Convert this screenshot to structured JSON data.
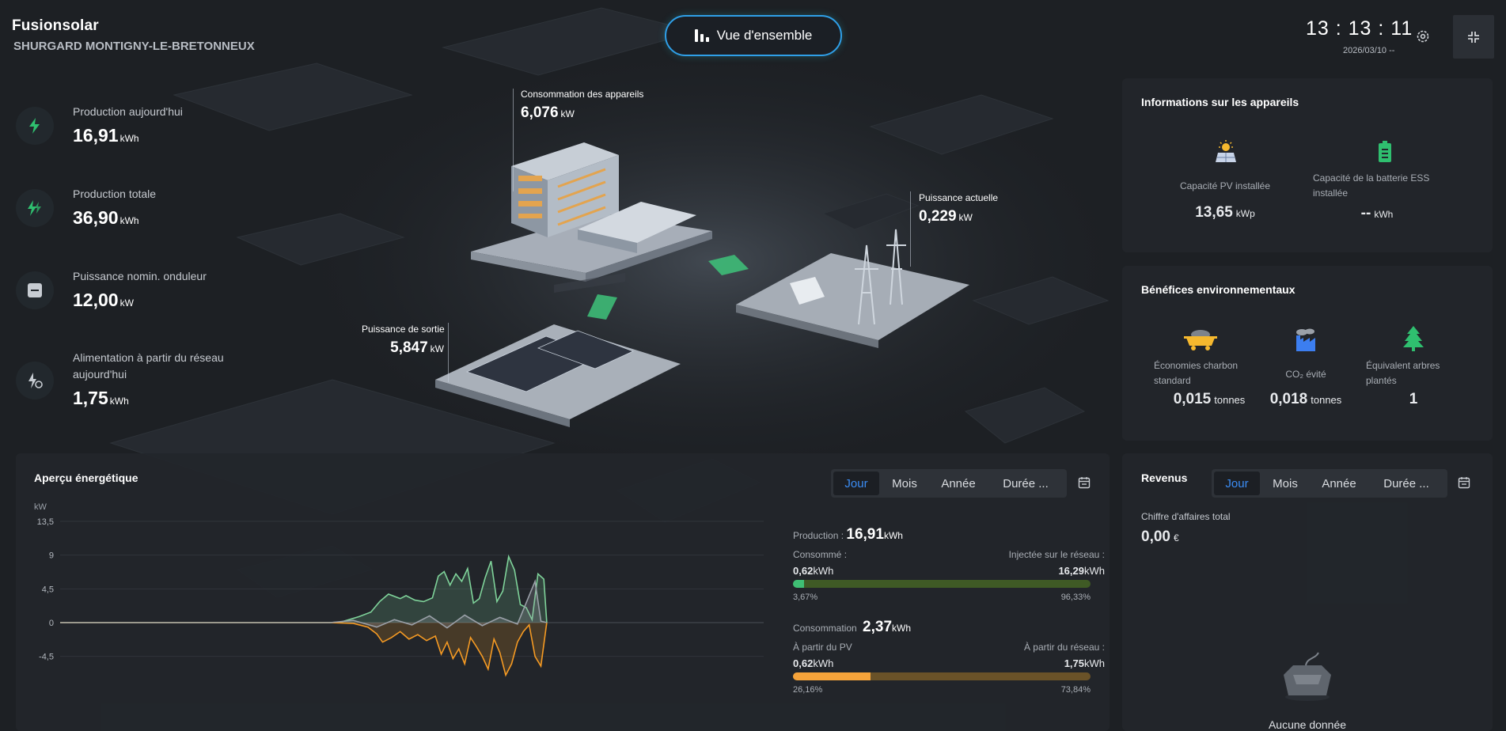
{
  "header": {
    "logo": "Fusionsolar",
    "plant_name": "SHURGARD MONTIGNY-LE-BRETONNEUX",
    "overview_label": "Vue d'ensemble",
    "clock": "13 : 13 : 11",
    "date": "2026/03/10 --"
  },
  "stats": [
    {
      "label": "Production aujourd'hui",
      "value": "16,91",
      "unit": "kWh",
      "icon": "bolt-icon"
    },
    {
      "label": "Production totale",
      "value": "36,90",
      "unit": "kWh",
      "icon": "double-bolt-icon"
    },
    {
      "label": "Puissance nomin. onduleur",
      "value": "12,00",
      "unit": "kW",
      "icon": "inverter-icon"
    },
    {
      "label_line1": "Alimentation à partir du réseau",
      "label_line2": "aujourd'hui",
      "value": "1,75",
      "unit": "kWh",
      "icon": "grid-supply-icon"
    }
  ],
  "scene": {
    "consumption_label": "Consommation des appareils",
    "consumption_value": "6,076",
    "consumption_unit": "kW",
    "current_label": "Puissance actuelle",
    "current_value": "0,229",
    "current_unit": "kW",
    "output_label": "Puissance de sortie",
    "output_value": "5,847",
    "output_unit": "kW"
  },
  "devices": {
    "title": "Informations sur les appareils",
    "pv_label": "Capacité PV installée",
    "pv_value": "13,65",
    "pv_unit": "kWp",
    "ess_label_line1": "Capacité de la batterie ESS",
    "ess_label_line2": "installée",
    "ess_value": "--",
    "ess_unit": "kWh"
  },
  "environment": {
    "title": "Bénéfices environnementaux",
    "coal_label_line1": "Économies charbon",
    "coal_label_line2": "standard",
    "coal_value": "0,015",
    "coal_unit": "tonnes",
    "co2_label": "CO₂ évité",
    "co2_value": "0,018",
    "co2_unit": "tonnes",
    "trees_label_line1": "Équivalent arbres",
    "trees_label_line2": "plantés",
    "trees_value": "1"
  },
  "energy": {
    "title": "Aperçu énergétique",
    "tabs": [
      "Jour",
      "Mois",
      "Année",
      "Durée ..."
    ],
    "active_tab": "Jour",
    "production_label": "Production :",
    "production_value": "16,91",
    "production_unit": "kWh",
    "consumed_label": "Consommé :",
    "consumed_value": "0,62",
    "consumed_unit": "kWh",
    "injected_label": "Injectée sur le réseau :",
    "injected_value": "16,29",
    "injected_unit": "kWh",
    "consumed_pct": "3,67%",
    "injected_pct": "96,33%",
    "consumed_fraction": 0.0367,
    "consumption_label": "Consommation",
    "consumption_value": "2,37",
    "consumption_unit": "kWh",
    "from_pv_label": "À partir du PV",
    "from_pv_value": "0,62",
    "from_pv_unit": "kWh",
    "from_grid_label": "À partir du réseau :",
    "from_grid_value": "1,75",
    "from_grid_unit": "kWh",
    "from_pv_pct": "26,16%",
    "from_grid_pct": "73,84%",
    "from_pv_fraction": 0.2616,
    "colors": {
      "production": "#7fd39a",
      "consumption": "#f59a23",
      "grid": "#9aa0a8"
    }
  },
  "chart_data": {
    "type": "area",
    "ylabel": "kW",
    "y_ticks": [
      "13,5",
      "9",
      "4,5",
      "0",
      "-4,5"
    ],
    "ylim": [
      -8,
      13.5
    ],
    "xlim": [
      0,
      24
    ],
    "grid": true,
    "series": [
      {
        "values": [
          [
            0,
            0
          ],
          [
            9.2,
            0
          ],
          [
            9.6,
            0.1
          ],
          [
            10.2,
            0.8
          ],
          [
            10.6,
            1.4
          ],
          [
            10.9,
            2.8
          ],
          [
            11.2,
            3.8
          ],
          [
            11.6,
            3.2
          ],
          [
            11.8,
            3.6
          ],
          [
            12.1,
            3.0
          ],
          [
            12.4,
            2.8
          ],
          [
            12.7,
            3.3
          ],
          [
            12.9,
            6.2
          ],
          [
            13.1,
            6.8
          ],
          [
            13.3,
            5.0
          ],
          [
            13.5,
            6.5
          ],
          [
            13.7,
            5.5
          ],
          [
            13.9,
            7.2
          ],
          [
            14.1,
            2.6
          ],
          [
            14.3,
            3.2
          ],
          [
            14.5,
            6.0
          ],
          [
            14.7,
            8.2
          ],
          [
            14.9,
            2.8
          ],
          [
            15.1,
            4.2
          ],
          [
            15.3,
            8.8
          ],
          [
            15.5,
            7.0
          ],
          [
            15.7,
            2.4
          ],
          [
            15.9,
            2.0
          ],
          [
            16.1,
            0.4
          ],
          [
            16.3,
            6.5
          ],
          [
            16.5,
            5.8
          ],
          [
            16.6,
            0
          ]
        ]
      },
      {
        "values": [
          [
            0,
            0
          ],
          [
            9.2,
            0
          ],
          [
            10,
            -0.1
          ],
          [
            10.5,
            -0.6
          ],
          [
            10.8,
            -1.5
          ],
          [
            11.0,
            -2.6
          ],
          [
            11.3,
            -2.0
          ],
          [
            11.6,
            -1.2
          ],
          [
            11.9,
            -2.2
          ],
          [
            12.2,
            -1.6
          ],
          [
            12.5,
            -2.4
          ],
          [
            12.8,
            -1.8
          ],
          [
            13.0,
            -4.2
          ],
          [
            13.2,
            -2.6
          ],
          [
            13.4,
            -4.8
          ],
          [
            13.6,
            -3.5
          ],
          [
            13.8,
            -5.5
          ],
          [
            14.0,
            -2.0
          ],
          [
            14.2,
            -3.2
          ],
          [
            14.4,
            -4.5
          ],
          [
            14.6,
            -6.2
          ],
          [
            14.8,
            -2.2
          ],
          [
            15.0,
            -4.0
          ],
          [
            15.2,
            -7.0
          ],
          [
            15.4,
            -5.5
          ],
          [
            15.6,
            -2.6
          ],
          [
            15.8,
            -1.2
          ],
          [
            16.0,
            -0.3
          ],
          [
            16.2,
            -4.5
          ],
          [
            16.4,
            -5.8
          ],
          [
            16.6,
            0
          ]
        ]
      },
      {
        "values": [
          [
            0,
            0
          ],
          [
            9.2,
            0
          ],
          [
            10,
            0.3
          ],
          [
            10.8,
            -0.6
          ],
          [
            11.4,
            0.4
          ],
          [
            12.0,
            -0.3
          ],
          [
            12.6,
            0.9
          ],
          [
            13.2,
            -0.7
          ],
          [
            13.8,
            1.0
          ],
          [
            14.4,
            -0.4
          ],
          [
            15.0,
            0.7
          ],
          [
            15.6,
            -0.2
          ],
          [
            16.2,
            5.5
          ],
          [
            16.4,
            0.2
          ],
          [
            16.6,
            0
          ]
        ]
      }
    ]
  },
  "revenue": {
    "title": "Revenus",
    "tabs": [
      "Jour",
      "Mois",
      "Année",
      "Durée ..."
    ],
    "active_tab": "Jour",
    "total_label": "Chiffre d'affaires total",
    "total_value": "0,00",
    "total_unit": "€",
    "empty_label": "Aucune donnée"
  }
}
